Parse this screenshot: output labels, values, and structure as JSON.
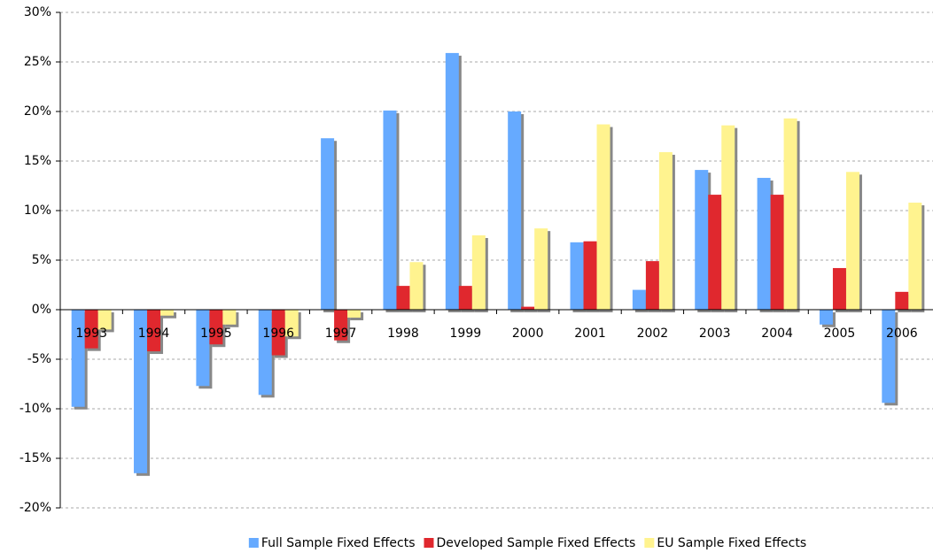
{
  "chart_data": {
    "type": "bar",
    "categories": [
      "1993",
      "1994",
      "1995",
      "1996",
      "1997",
      "1998",
      "1999",
      "2000",
      "2001",
      "2002",
      "2003",
      "2004",
      "2005",
      "2006"
    ],
    "series": [
      {
        "name": "Full Sample Fixed Effects",
        "color": "#66aaff",
        "values": [
          -9.8,
          -16.5,
          -7.7,
          -8.6,
          17.3,
          20.1,
          25.9,
          20.0,
          6.8,
          2.0,
          14.1,
          13.3,
          -1.5,
          -9.4
        ]
      },
      {
        "name": "Developed Sample Fixed Effects",
        "color": "#e0282e",
        "values": [
          -3.9,
          -4.2,
          -3.5,
          -4.6,
          -3.1,
          2.4,
          2.4,
          0.3,
          6.9,
          4.9,
          11.6,
          11.6,
          4.2,
          1.8
        ]
      },
      {
        "name": "EU Sample Fixed Effects",
        "color": "#fff38f",
        "values": [
          -2.0,
          -0.6,
          -1.5,
          -2.7,
          -0.8,
          4.8,
          7.5,
          8.2,
          18.7,
          15.9,
          18.6,
          19.3,
          13.9,
          10.8
        ]
      }
    ],
    "ylim": [
      -20,
      30
    ],
    "yticks": [
      {
        "value": -20,
        "label": "-20%"
      },
      {
        "value": -15,
        "label": "-15%"
      },
      {
        "value": -10,
        "label": "-10%"
      },
      {
        "value": -5,
        "label": "-5%"
      },
      {
        "value": 0,
        "label": "0%"
      },
      {
        "value": 5,
        "label": "5%"
      },
      {
        "value": 10,
        "label": "10%"
      },
      {
        "value": 15,
        "label": "15%"
      },
      {
        "value": 20,
        "label": "20%"
      },
      {
        "value": 25,
        "label": "25%"
      },
      {
        "value": 30,
        "label": "30%"
      }
    ],
    "grid": true,
    "legend": "bottom"
  }
}
